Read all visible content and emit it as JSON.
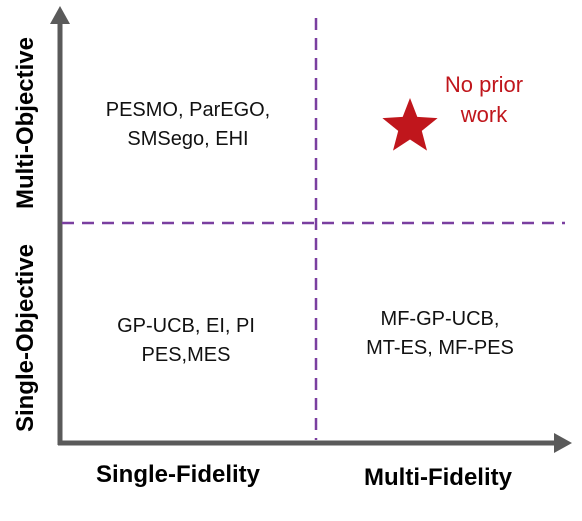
{
  "quadrants": {
    "multi_objective_single_fidelity": [
      "PESMO, ParEGO,",
      "SMSego, EHI"
    ],
    "multi_objective_multi_fidelity": [
      "No prior",
      "work"
    ],
    "single_objective_single_fidelity": [
      "GP-UCB, EI, PI",
      "PES,MES"
    ],
    "single_objective_multi_fidelity": [
      "MF-GP-UCB,",
      "MT-ES, MF-PES"
    ]
  },
  "axes": {
    "x_left": "Single-Fidelity",
    "x_right": "Multi-Fidelity",
    "y_top": "Multi-Objective",
    "y_bottom": "Single-Objective"
  },
  "colors": {
    "axis": "#5a5a5a",
    "divider": "#7a3fa0",
    "highlight": "#c0161c",
    "text": "#111111"
  },
  "icons": {
    "highlight_marker": "star-icon"
  }
}
